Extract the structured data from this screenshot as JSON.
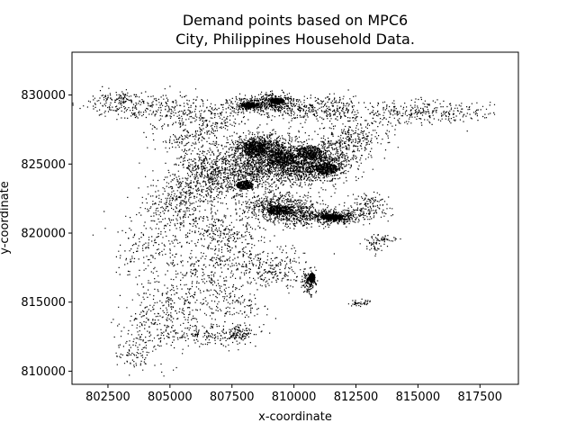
{
  "chart_data": {
    "type": "scatter",
    "title": "Demand points based on MPC6\nCity, Philippines Household Data.",
    "title_lines": [
      "Demand points based on MPC6",
      "City, Philippines Household Data."
    ],
    "xlabel": "x-coordinate",
    "ylabel": "y-coordinate",
    "xlim": [
      801050,
      819050
    ],
    "ylim": [
      809050,
      833100
    ],
    "xticks": [
      802500,
      805000,
      807500,
      810000,
      812500,
      815000,
      817500
    ],
    "yticks": [
      810000,
      815000,
      820000,
      825000,
      830000
    ],
    "xtick_labels": [
      "802500",
      "805000",
      "807500",
      "810000",
      "812500",
      "815000",
      "817500"
    ],
    "ytick_labels": [
      "810000",
      "815000",
      "820000",
      "825000",
      "830000"
    ],
    "grid": false,
    "legend": "none",
    "marker_color": "#000000",
    "clusters": [
      {
        "x": 809000,
        "y": 825800,
        "sx": 900,
        "sy": 700,
        "n": 900
      },
      {
        "x": 808500,
        "y": 826300,
        "sx": 500,
        "sy": 400,
        "n": 450
      },
      {
        "x": 810300,
        "y": 824800,
        "sx": 800,
        "sy": 600,
        "n": 800
      },
      {
        "x": 811200,
        "y": 825300,
        "sx": 700,
        "sy": 600,
        "n": 500
      },
      {
        "x": 809300,
        "y": 822000,
        "sx": 700,
        "sy": 500,
        "n": 500
      },
      {
        "x": 810300,
        "y": 821300,
        "sx": 700,
        "sy": 400,
        "n": 400
      },
      {
        "x": 811700,
        "y": 821200,
        "sx": 500,
        "sy": 250,
        "n": 350
      },
      {
        "x": 808200,
        "y": 824300,
        "sx": 800,
        "sy": 600,
        "n": 450
      },
      {
        "x": 806500,
        "y": 823500,
        "sx": 900,
        "sy": 700,
        "n": 350
      },
      {
        "x": 806500,
        "y": 825000,
        "sx": 700,
        "sy": 600,
        "n": 250
      },
      {
        "x": 808300,
        "y": 829300,
        "sx": 500,
        "sy": 300,
        "n": 300
      },
      {
        "x": 809200,
        "y": 829600,
        "sx": 400,
        "sy": 300,
        "n": 220
      },
      {
        "x": 810000,
        "y": 829000,
        "sx": 600,
        "sy": 400,
        "n": 200
      },
      {
        "x": 811700,
        "y": 829000,
        "sx": 600,
        "sy": 500,
        "n": 200
      },
      {
        "x": 812300,
        "y": 826800,
        "sx": 700,
        "sy": 600,
        "n": 250
      },
      {
        "x": 813000,
        "y": 822000,
        "sx": 400,
        "sy": 500,
        "n": 150
      },
      {
        "x": 810600,
        "y": 816500,
        "sx": 150,
        "sy": 500,
        "n": 140
      },
      {
        "x": 805300,
        "y": 822000,
        "sx": 700,
        "sy": 900,
        "n": 250
      },
      {
        "x": 807200,
        "y": 820000,
        "sx": 800,
        "sy": 800,
        "n": 250
      },
      {
        "x": 804300,
        "y": 819000,
        "sx": 900,
        "sy": 1200,
        "n": 200
      },
      {
        "x": 806500,
        "y": 817500,
        "sx": 800,
        "sy": 1000,
        "n": 200
      },
      {
        "x": 808800,
        "y": 818000,
        "sx": 800,
        "sy": 600,
        "n": 180
      },
      {
        "x": 805000,
        "y": 815000,
        "sx": 800,
        "sy": 1000,
        "n": 200
      },
      {
        "x": 807500,
        "y": 814800,
        "sx": 700,
        "sy": 800,
        "n": 150
      },
      {
        "x": 804200,
        "y": 813000,
        "sx": 700,
        "sy": 900,
        "n": 150
      },
      {
        "x": 806500,
        "y": 812600,
        "sx": 800,
        "sy": 400,
        "n": 150
      },
      {
        "x": 807800,
        "y": 812800,
        "sx": 300,
        "sy": 300,
        "n": 100
      },
      {
        "x": 803500,
        "y": 811200,
        "sx": 400,
        "sy": 500,
        "n": 70
      },
      {
        "x": 803100,
        "y": 829200,
        "sx": 800,
        "sy": 500,
        "n": 150
      },
      {
        "x": 805000,
        "y": 829000,
        "sx": 900,
        "sy": 600,
        "n": 180
      },
      {
        "x": 806800,
        "y": 828300,
        "sx": 700,
        "sy": 600,
        "n": 150
      },
      {
        "x": 805800,
        "y": 827000,
        "sx": 700,
        "sy": 600,
        "n": 160
      },
      {
        "x": 813800,
        "y": 828600,
        "sx": 700,
        "sy": 500,
        "n": 120
      },
      {
        "x": 815200,
        "y": 829000,
        "sx": 700,
        "sy": 400,
        "n": 100
      },
      {
        "x": 816700,
        "y": 828700,
        "sx": 700,
        "sy": 400,
        "n": 100
      },
      {
        "x": 812700,
        "y": 815000,
        "sx": 200,
        "sy": 100,
        "n": 40
      },
      {
        "x": 813300,
        "y": 819200,
        "sx": 250,
        "sy": 300,
        "n": 50
      },
      {
        "x": 813700,
        "y": 819600,
        "sx": 200,
        "sy": 100,
        "n": 30
      },
      {
        "x": 809200,
        "y": 816800,
        "sx": 500,
        "sy": 400,
        "n": 80
      },
      {
        "x": 802900,
        "y": 829800,
        "sx": 400,
        "sy": 200,
        "n": 60
      }
    ],
    "dense_blobs": [
      {
        "x": 808400,
        "y": 826100,
        "rx": 450,
        "ry": 550
      },
      {
        "x": 809500,
        "y": 825400,
        "rx": 600,
        "ry": 500
      },
      {
        "x": 810600,
        "y": 825900,
        "rx": 500,
        "ry": 450
      },
      {
        "x": 809400,
        "y": 821700,
        "rx": 500,
        "ry": 350
      },
      {
        "x": 811500,
        "y": 821200,
        "rx": 450,
        "ry": 200
      },
      {
        "x": 810700,
        "y": 816800,
        "rx": 130,
        "ry": 350
      },
      {
        "x": 808200,
        "y": 829300,
        "rx": 350,
        "ry": 200
      },
      {
        "x": 809300,
        "y": 829600,
        "rx": 300,
        "ry": 200
      },
      {
        "x": 811300,
        "y": 824700,
        "rx": 450,
        "ry": 400
      },
      {
        "x": 808000,
        "y": 823500,
        "rx": 350,
        "ry": 300
      }
    ]
  }
}
